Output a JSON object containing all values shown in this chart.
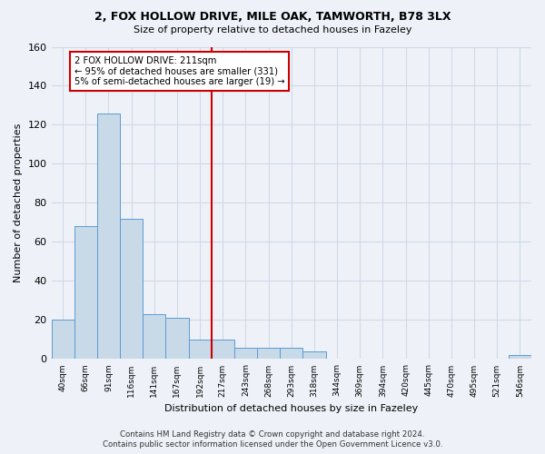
{
  "title1": "2, FOX HOLLOW DRIVE, MILE OAK, TAMWORTH, B78 3LX",
  "title2": "Size of property relative to detached houses in Fazeley",
  "xlabel": "Distribution of detached houses by size in Fazeley",
  "ylabel": "Number of detached properties",
  "footer1": "Contains HM Land Registry data © Crown copyright and database right 2024.",
  "footer2": "Contains public sector information licensed under the Open Government Licence v3.0.",
  "bin_labels": [
    "40sqm",
    "66sqm",
    "91sqm",
    "116sqm",
    "141sqm",
    "167sqm",
    "192sqm",
    "217sqm",
    "243sqm",
    "268sqm",
    "293sqm",
    "318sqm",
    "344sqm",
    "369sqm",
    "394sqm",
    "420sqm",
    "445sqm",
    "470sqm",
    "495sqm",
    "521sqm",
    "546sqm"
  ],
  "bar_heights": [
    20,
    68,
    126,
    72,
    23,
    21,
    10,
    10,
    6,
    6,
    6,
    4,
    0,
    0,
    0,
    0,
    0,
    0,
    0,
    0,
    2
  ],
  "bar_color": "#c8d9e8",
  "bar_edge_color": "#5b9bd5",
  "grid_color": "#d0d8e8",
  "background_color": "#eef2f8",
  "vline_x": 7.0,
  "vline_color": "#cc0000",
  "annotation_line1": "2 FOX HOLLOW DRIVE: 211sqm",
  "annotation_line2": "← 95% of detached houses are smaller (331)",
  "annotation_line3": "5% of semi-detached houses are larger (19) →",
  "annotation_box_color": "#ffffff",
  "annotation_box_edge": "#cc0000",
  "ylim": [
    0,
    160
  ],
  "yticks": [
    0,
    20,
    40,
    60,
    80,
    100,
    120,
    140,
    160
  ]
}
